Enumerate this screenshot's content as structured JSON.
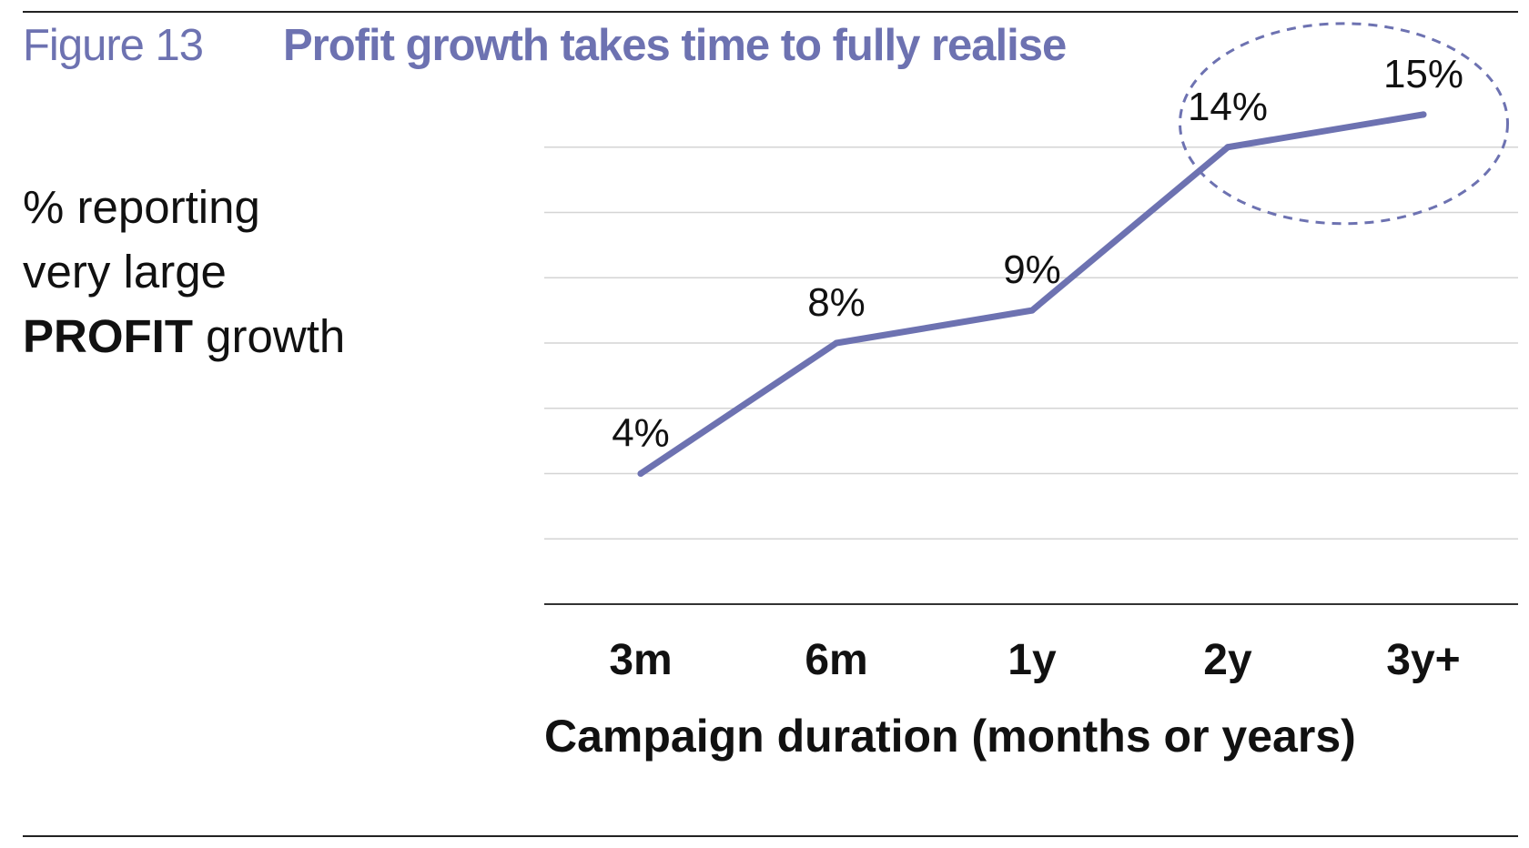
{
  "figure": {
    "number": "Figure 13",
    "title": "Profit growth takes time to fully realise"
  },
  "y_axis_text": {
    "line1": "% reporting",
    "line2": "very large",
    "line3_strong": "PROFIT",
    "line3_rest": " growth"
  },
  "chart_data": {
    "type": "line",
    "title": "Profit growth takes time to fully realise",
    "xlabel": "Campaign duration (months or years)",
    "ylabel": "% reporting very large PROFIT growth",
    "categories": [
      "3m",
      "6m",
      "1y",
      "2y",
      "3y+"
    ],
    "series": [
      {
        "name": "% reporting very large profit growth",
        "values": [
          4,
          8,
          9,
          14,
          15
        ],
        "labels": [
          "4%",
          "8%",
          "9%",
          "14%",
          "15%"
        ]
      }
    ],
    "ylim": [
      0,
      16
    ],
    "grid": true,
    "annotation": "dashed ellipse highlighting 2y and 3y+ values",
    "line_color": "#6d72b1",
    "grid_color": "#d4d4d4"
  },
  "colors": {
    "accent": "#6d72b1",
    "text": "#111111"
  }
}
